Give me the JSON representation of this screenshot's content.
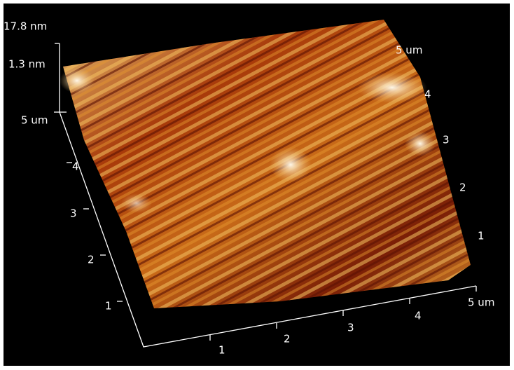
{
  "z_axis": {
    "max_label": "17.8 nm",
    "min_label": "1.3 nm"
  },
  "left_axis": {
    "ticks": [
      "1",
      "2",
      "3",
      "4",
      "5 um"
    ]
  },
  "bottom_axis": {
    "ticks": [
      "1",
      "2",
      "3",
      "4",
      "5 um"
    ]
  },
  "right_axis": {
    "ticks": [
      "1",
      "2",
      "3",
      "4",
      "5 um"
    ]
  }
}
